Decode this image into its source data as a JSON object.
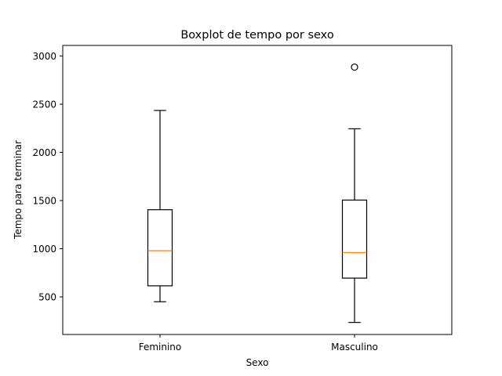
{
  "chart_data": {
    "type": "boxplot",
    "title": "Boxplot de tempo por sexo",
    "xlabel": "Sexo",
    "ylabel": "Tempo para terminar",
    "ylim": [
      110,
      3110
    ],
    "yticks": [
      500,
      1000,
      1500,
      2000,
      2500,
      3000
    ],
    "grid": false,
    "colors": {
      "box": "#000000",
      "median": "#ff7f0e"
    },
    "categories": [
      "Feminino",
      "Masculino"
    ],
    "series": [
      {
        "category": "Feminino",
        "whisker_low": 450,
        "q1": 615,
        "median": 980,
        "q3": 1405,
        "whisker_high": 2435,
        "outliers": []
      },
      {
        "category": "Masculino",
        "whisker_low": 235,
        "q1": 695,
        "median": 960,
        "q3": 1505,
        "whisker_high": 2245,
        "outliers": [
          2885
        ]
      }
    ]
  }
}
